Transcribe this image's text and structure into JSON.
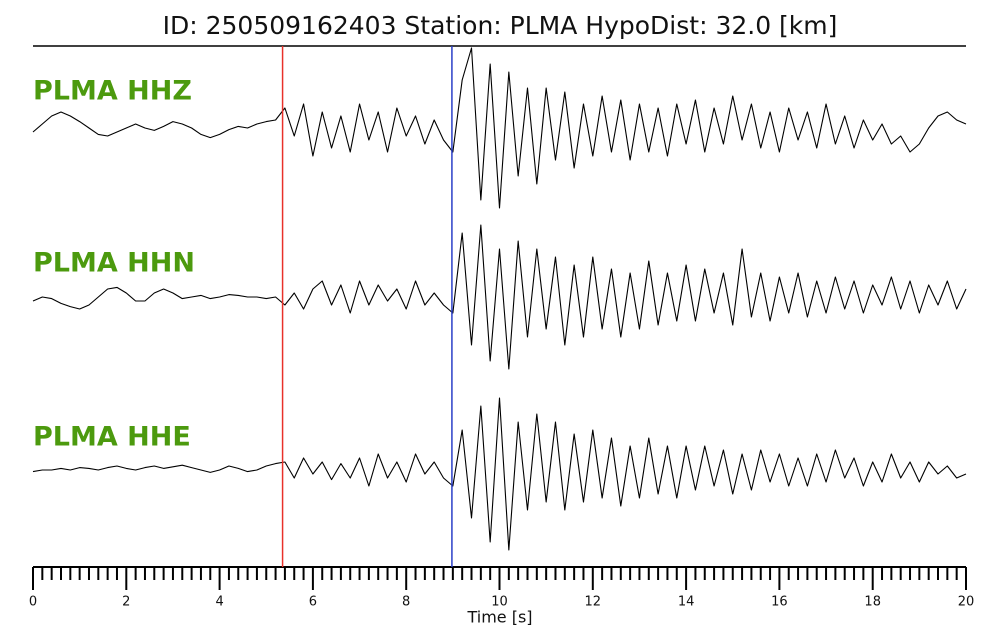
{
  "chart_data": {
    "type": "seismogram",
    "title": "ID: 250509162403   Station: PLMA   HypoDist:    32.0 [km]",
    "x_label": "Time [s]",
    "xlim": [
      0,
      20
    ],
    "xticks": [
      0,
      2,
      4,
      6,
      8,
      10,
      12,
      14,
      16,
      18,
      20
    ],
    "xminorticks": [
      0.2,
      0.4,
      0.6,
      0.8,
      1,
      1.2,
      1.4,
      1.6,
      1.8,
      2.2,
      2.4,
      2.6,
      2.8,
      3,
      3.2,
      3.4,
      3.6,
      3.8,
      4.2,
      4.4,
      4.6,
      4.8,
      5,
      5.2,
      5.4,
      5.6,
      5.8,
      6.2,
      6.4,
      6.6,
      6.8,
      7,
      7.2,
      7.4,
      7.6,
      7.8,
      8.2,
      8.4,
      8.6,
      8.8,
      9,
      9.2,
      9.4,
      9.6,
      9.8,
      10.2,
      10.4,
      10.6,
      10.8,
      11,
      11.2,
      11.4,
      11.6,
      11.8,
      12.2,
      12.4,
      12.6,
      12.8,
      13,
      13.2,
      13.4,
      13.6,
      13.8,
      14.2,
      14.4,
      14.6,
      14.8,
      15,
      15.2,
      15.4,
      15.6,
      15.8,
      16.2,
      16.4,
      16.6,
      16.8,
      17,
      17.2,
      17.4,
      17.6,
      17.8,
      18.2,
      18.4,
      18.6,
      18.8,
      19,
      19.2,
      19.4,
      19.6,
      19.8
    ],
    "ylim": [
      -1,
      1
    ],
    "label_color": "#4c9a0e",
    "markers": [
      {
        "x": 5.35,
        "color": "#e8312a"
      },
      {
        "x": 8.98,
        "color": "#2a3fc8"
      }
    ],
    "x": [
      0,
      0.2,
      0.4,
      0.6,
      0.8,
      1,
      1.2,
      1.4,
      1.6,
      1.8,
      2,
      2.2,
      2.4,
      2.6,
      2.8,
      3,
      3.2,
      3.4,
      3.6,
      3.8,
      4,
      4.2,
      4.4,
      4.6,
      4.8,
      5,
      5.2,
      5.4,
      5.6,
      5.8,
      6,
      6.2,
      6.4,
      6.6,
      6.8,
      7,
      7.2,
      7.4,
      7.6,
      7.8,
      8,
      8.2,
      8.4,
      8.6,
      8.8,
      9,
      9.2,
      9.4,
      9.6,
      9.8,
      10,
      10.2,
      10.4,
      10.6,
      10.8,
      11,
      11.2,
      11.4,
      11.6,
      11.8,
      12,
      12.2,
      12.4,
      12.6,
      12.8,
      13,
      13.2,
      13.4,
      13.6,
      13.8,
      14,
      14.2,
      14.4,
      14.6,
      14.8,
      15,
      15.2,
      15.4,
      15.6,
      15.8,
      16,
      16.2,
      16.4,
      16.6,
      16.8,
      17,
      17.2,
      17.4,
      17.6,
      17.8,
      18,
      18.2,
      18.4,
      18.6,
      18.8,
      19,
      19.2,
      19.4,
      19.6,
      19.8,
      20
    ],
    "series": [
      {
        "name": "PLMA HHZ",
        "color": "#000000",
        "values": [
          -0.05,
          0.05,
          0.15,
          0.2,
          0.15,
          0.08,
          0.0,
          -0.08,
          -0.1,
          -0.05,
          0.0,
          0.05,
          0.0,
          -0.03,
          0.02,
          0.08,
          0.05,
          0.0,
          -0.08,
          -0.12,
          -0.08,
          -0.02,
          0.02,
          0.0,
          0.05,
          0.08,
          0.1,
          0.25,
          -0.1,
          0.3,
          -0.35,
          0.2,
          -0.25,
          0.15,
          -0.3,
          0.3,
          -0.15,
          0.2,
          -0.3,
          0.25,
          -0.1,
          0.15,
          -0.2,
          0.1,
          -0.15,
          -0.3,
          0.6,
          1.0,
          -0.9,
          0.8,
          -1.0,
          0.7,
          -0.6,
          0.5,
          -0.7,
          0.5,
          -0.4,
          0.45,
          -0.5,
          0.3,
          -0.35,
          0.4,
          -0.3,
          0.35,
          -0.4,
          0.3,
          -0.3,
          0.25,
          -0.35,
          0.3,
          -0.2,
          0.35,
          -0.3,
          0.25,
          -0.2,
          0.4,
          -0.15,
          0.3,
          -0.25,
          0.2,
          -0.3,
          0.25,
          -0.15,
          0.2,
          -0.25,
          0.3,
          -0.2,
          0.15,
          -0.25,
          0.1,
          -0.15,
          0.05,
          -0.2,
          -0.1,
          -0.3,
          -0.2,
          0.0,
          0.15,
          0.2,
          0.1,
          0.05
        ]
      },
      {
        "name": "PLMA HHN",
        "color": "#000000",
        "values": [
          -0.05,
          0.0,
          -0.02,
          -0.08,
          -0.12,
          -0.15,
          -0.1,
          0.0,
          0.1,
          0.12,
          0.05,
          -0.05,
          -0.05,
          0.05,
          0.1,
          0.05,
          -0.02,
          0.0,
          0.02,
          -0.02,
          0.0,
          0.03,
          0.02,
          0.0,
          0.0,
          -0.02,
          0.0,
          -0.1,
          0.05,
          -0.15,
          0.1,
          0.2,
          -0.1,
          0.15,
          -0.2,
          0.2,
          -0.1,
          0.15,
          -0.05,
          0.1,
          -0.15,
          0.2,
          -0.1,
          0.05,
          -0.1,
          -0.2,
          0.8,
          -0.6,
          0.9,
          -0.8,
          0.6,
          -0.9,
          0.7,
          -0.5,
          0.6,
          -0.4,
          0.5,
          -0.6,
          0.4,
          -0.5,
          0.5,
          -0.4,
          0.35,
          -0.5,
          0.3,
          -0.4,
          0.45,
          -0.35,
          0.3,
          -0.3,
          0.4,
          -0.3,
          0.35,
          -0.2,
          0.3,
          -0.35,
          0.6,
          -0.25,
          0.3,
          -0.3,
          0.25,
          -0.2,
          0.3,
          -0.25,
          0.2,
          -0.2,
          0.25,
          -0.15,
          0.2,
          -0.2,
          0.15,
          -0.1,
          0.25,
          -0.15,
          0.2,
          -0.2,
          0.15,
          -0.1,
          0.2,
          -0.15,
          0.1
        ]
      },
      {
        "name": "PLMA HHE",
        "color": "#000000",
        "values": [
          -0.02,
          0.0,
          0.0,
          0.02,
          0.0,
          0.03,
          0.02,
          0.0,
          0.03,
          0.05,
          0.02,
          0.0,
          0.03,
          0.05,
          0.02,
          0.04,
          0.06,
          0.03,
          0.0,
          -0.03,
          0.0,
          0.05,
          0.02,
          -0.02,
          0.0,
          0.05,
          0.08,
          0.1,
          -0.1,
          0.15,
          -0.05,
          0.1,
          -0.12,
          0.08,
          -0.1,
          0.15,
          -0.2,
          0.2,
          -0.1,
          0.1,
          -0.15,
          0.2,
          -0.05,
          0.1,
          -0.1,
          -0.2,
          0.5,
          -0.6,
          0.8,
          -0.9,
          0.9,
          -1.0,
          0.6,
          -0.5,
          0.7,
          -0.4,
          0.6,
          -0.5,
          0.45,
          -0.4,
          0.5,
          -0.35,
          0.4,
          -0.45,
          0.3,
          -0.35,
          0.4,
          -0.3,
          0.3,
          -0.35,
          0.3,
          -0.25,
          0.3,
          -0.2,
          0.25,
          -0.3,
          0.2,
          -0.25,
          0.25,
          -0.15,
          0.2,
          -0.2,
          0.15,
          -0.2,
          0.2,
          -0.15,
          0.25,
          -0.1,
          0.15,
          -0.2,
          0.1,
          -0.15,
          0.2,
          -0.1,
          0.1,
          -0.15,
          0.1,
          -0.05,
          0.05,
          -0.1,
          -0.05
        ]
      }
    ]
  }
}
